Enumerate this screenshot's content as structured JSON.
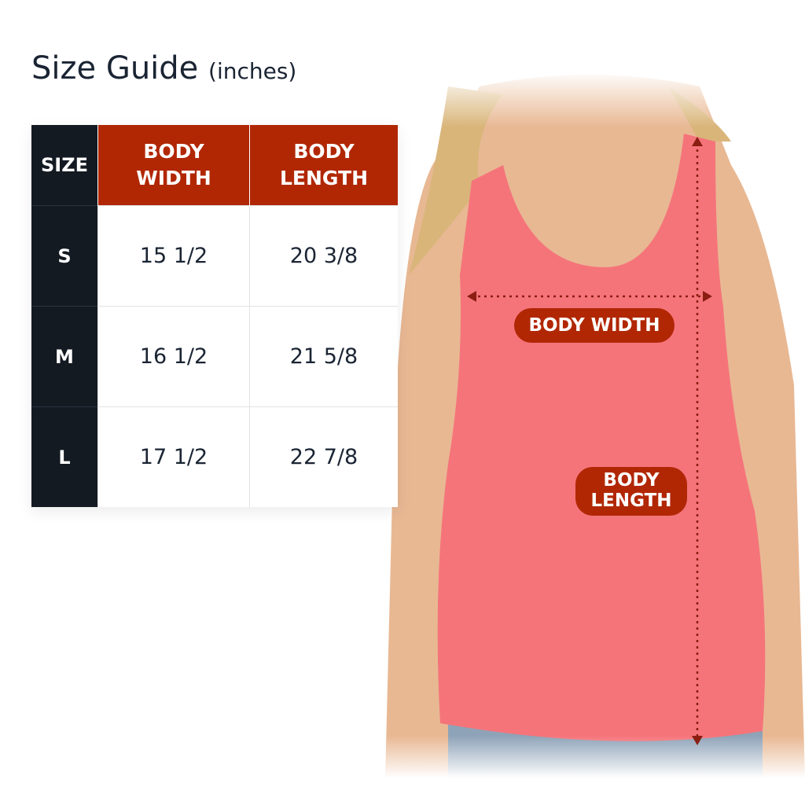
{
  "title": {
    "main": "Size Guide",
    "unit": "(inches)"
  },
  "colors": {
    "header_dark": "#131a22",
    "header_accent": "#b12704",
    "shirt": "#f5747a"
  },
  "table": {
    "headers": [
      "SIZE",
      "BODY WIDTH",
      "BODY LENGTH"
    ],
    "header_lines": {
      "width": [
        "BODY",
        "WIDTH"
      ],
      "length": [
        "BODY",
        "LENGTH"
      ]
    },
    "rows": [
      {
        "size": "S",
        "width": "15 1/2",
        "length": "20 3/8"
      },
      {
        "size": "M",
        "width": "16 1/2",
        "length": "21 5/8"
      },
      {
        "size": "L",
        "width": "17 1/2",
        "length": "22 7/8"
      }
    ]
  },
  "photo": {
    "width_label": "BODY WIDTH",
    "length_label_lines": [
      "BODY",
      "LENGTH"
    ]
  }
}
